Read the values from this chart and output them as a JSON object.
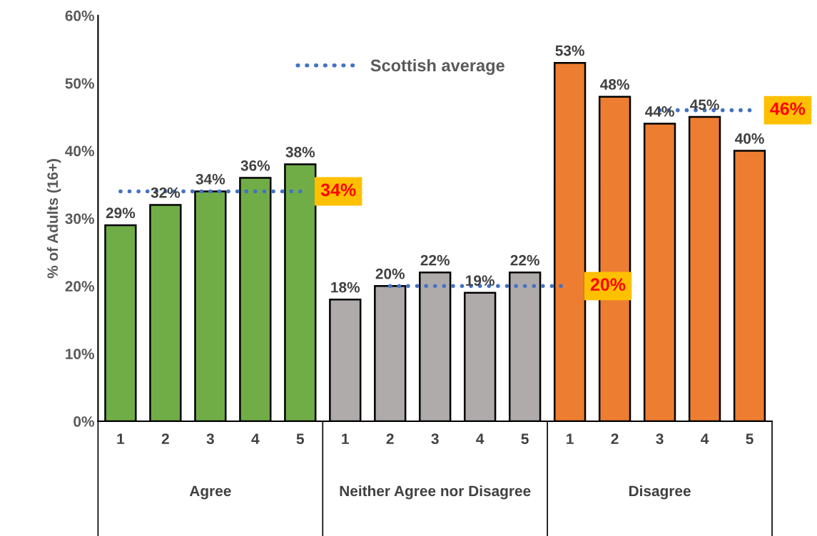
{
  "chart_data": {
    "type": "bar",
    "ylabel": "% of Adults (16+)",
    "annotations": [
      "Agree",
      "Neither Agree nor Disagree",
      "Disagree"
    ],
    "categories": [
      "1",
      "2",
      "3",
      "4",
      "5",
      "1",
      "2",
      "3",
      "4",
      "5",
      "1",
      "2",
      "3",
      "4",
      "5"
    ],
    "series": [
      {
        "color": "#70ad47",
        "values": [
          29,
          32,
          34,
          36,
          38,
          null,
          null,
          null,
          null,
          null,
          null,
          null,
          null,
          null,
          null
        ],
        "value_labels": [
          "29%",
          "32%",
          "34%",
          "36%",
          "38%",
          null,
          null,
          null,
          null,
          null,
          null,
          null,
          null,
          null,
          null
        ]
      },
      {
        "color": "#afabab",
        "values": [
          null,
          null,
          null,
          null,
          null,
          18,
          20,
          22,
          19,
          22,
          null,
          null,
          null,
          null,
          null
        ],
        "value_labels": [
          null,
          null,
          null,
          null,
          null,
          "18%",
          "20%",
          "22%",
          "19%",
          "22%",
          null,
          null,
          null,
          null,
          null
        ]
      },
      {
        "color": "#ed7d31",
        "values": [
          null,
          null,
          null,
          null,
          null,
          null,
          null,
          null,
          null,
          null,
          53,
          48,
          44,
          45,
          40
        ],
        "value_labels": [
          null,
          null,
          null,
          null,
          null,
          null,
          null,
          null,
          null,
          null,
          "53%",
          "48%",
          "44%",
          "45%",
          "40%"
        ]
      },
      {
        "name": "Scottish average",
        "type": "line",
        "color": "#4472c4",
        "line_style": "dotted",
        "values": [
          34,
          34,
          34,
          34,
          34,
          null,
          20,
          20,
          20,
          20,
          20,
          null,
          46,
          46,
          46
        ],
        "value_labels": [
          null,
          null,
          null,
          null,
          "34%",
          null,
          null,
          null,
          null,
          null,
          "20%",
          null,
          null,
          null,
          "46%"
        ]
      }
    ],
    "ylim": [
      0,
      60
    ],
    "yticks": [
      {
        "value": 0,
        "label": "0%"
      },
      {
        "value": 10,
        "label": "10%"
      },
      {
        "value": 20,
        "label": "20%"
      },
      {
        "value": 30,
        "label": "30%"
      },
      {
        "value": 40,
        "label": "40%"
      },
      {
        "value": 50,
        "label": "50%"
      },
      {
        "value": 60,
        "label": "60%"
      }
    ],
    "grid": false,
    "legend": "top"
  }
}
